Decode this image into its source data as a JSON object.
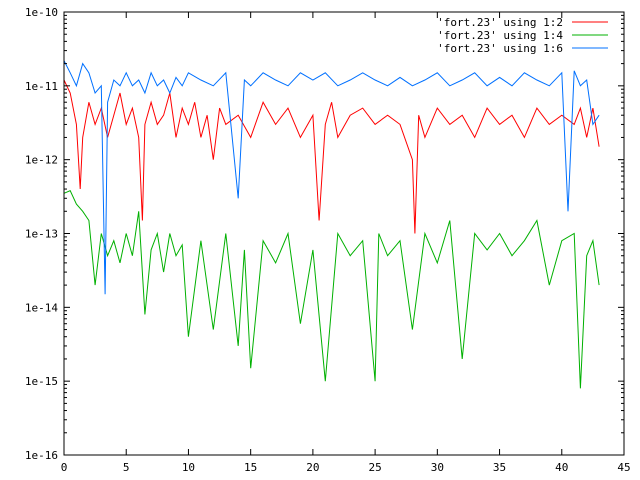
{
  "chart_data": {
    "type": "line",
    "title": "",
    "xlabel": "",
    "ylabel": "",
    "xlim": [
      0,
      45
    ],
    "ylim": [
      1e-16,
      1e-10
    ],
    "yscale": "log",
    "grid": false,
    "legend_placement": "top-right",
    "x_ticks": [
      0,
      5,
      10,
      15,
      20,
      25,
      30,
      35,
      40,
      45
    ],
    "x_tick_labels": [
      "0",
      "5",
      "10",
      "15",
      "20",
      "25",
      "30",
      "35",
      "40",
      "45"
    ],
    "y_ticks": [
      1e-16,
      1e-15,
      1e-14,
      1e-13,
      1e-12,
      1e-11,
      1e-10
    ],
    "y_tick_labels": [
      "1e-16",
      "1e-15",
      "1e-14",
      "1e-13",
      "1e-12",
      "1e-11",
      "1e-10"
    ],
    "series": [
      {
        "name": "'fort.23' using 1:2",
        "color": "#ff0000",
        "x": [
          0,
          0.5,
          1,
          1.3,
          1.5,
          2,
          2.5,
          3,
          3.5,
          4,
          4.5,
          5,
          5.5,
          6,
          6.3,
          6.5,
          7,
          7.5,
          8,
          8.5,
          9,
          9.5,
          10,
          10.5,
          11,
          11.5,
          12,
          12.5,
          13,
          14,
          15,
          16,
          17,
          18,
          19,
          20,
          20.5,
          21,
          21.5,
          22,
          23,
          24,
          25,
          26,
          27,
          28,
          28.2,
          28.5,
          29,
          30,
          31,
          32,
          33,
          34,
          35,
          36,
          37,
          38,
          39,
          40,
          41,
          41.5,
          42,
          42.5,
          43
        ],
        "y": [
          1.2e-11,
          8e-12,
          3e-12,
          4e-13,
          2e-12,
          6e-12,
          3e-12,
          5e-12,
          2e-12,
          4e-12,
          8e-12,
          3e-12,
          5e-12,
          2e-12,
          1.5e-13,
          3e-12,
          6e-12,
          3e-12,
          4e-12,
          8e-12,
          2e-12,
          5e-12,
          3e-12,
          6e-12,
          2e-12,
          4e-12,
          1e-12,
          5e-12,
          3e-12,
          4e-12,
          2e-12,
          6e-12,
          3e-12,
          5e-12,
          2e-12,
          4e-12,
          1.5e-13,
          3e-12,
          6e-12,
          2e-12,
          4e-12,
          5e-12,
          3e-12,
          4e-12,
          3e-12,
          1e-12,
          1e-13,
          4e-12,
          2e-12,
          5e-12,
          3e-12,
          4e-12,
          2e-12,
          5e-12,
          3e-12,
          4e-12,
          2e-12,
          5e-12,
          3e-12,
          4e-12,
          3e-12,
          5e-12,
          2e-12,
          5e-12,
          1.5e-12
        ]
      },
      {
        "name": "'fort.23' using 1:4",
        "color": "#00b000",
        "x": [
          0,
          0.5,
          1,
          1.5,
          2,
          2.5,
          3,
          3.5,
          4,
          4.5,
          5,
          5.5,
          6,
          6.5,
          7,
          7.5,
          8,
          8.5,
          9,
          9.5,
          10,
          11,
          12,
          13,
          14,
          14.5,
          15,
          16,
          17,
          18,
          19,
          20,
          21,
          22,
          23,
          24,
          25,
          25.3,
          26,
          27,
          28,
          29,
          30,
          31,
          32,
          33,
          34,
          35,
          36,
          37,
          38,
          39,
          40,
          41,
          41.5,
          42,
          42.5,
          43
        ],
        "y": [
          3.5e-13,
          3.8e-13,
          2.5e-13,
          2e-13,
          1.5e-13,
          2e-14,
          1e-13,
          5e-14,
          8e-14,
          4e-14,
          1e-13,
          5e-14,
          2e-13,
          8e-15,
          6e-14,
          1e-13,
          3e-14,
          1e-13,
          5e-14,
          7e-14,
          4e-15,
          8e-14,
          5e-15,
          1e-13,
          3e-15,
          6e-14,
          1.5e-15,
          8e-14,
          4e-14,
          1e-13,
          6e-15,
          6e-14,
          1e-15,
          1e-13,
          5e-14,
          8e-14,
          1e-15,
          1e-13,
          5e-14,
          8e-14,
          5e-15,
          1e-13,
          4e-14,
          1.5e-13,
          2e-15,
          1e-13,
          6e-14,
          1e-13,
          5e-14,
          8e-14,
          1.5e-13,
          2e-14,
          8e-14,
          1e-13,
          8e-16,
          5e-14,
          8e-14,
          2e-14
        ]
      },
      {
        "name": "'fort.23' using 1:6",
        "color": "#0070ff",
        "x": [
          0,
          0.5,
          1,
          1.5,
          2,
          2.5,
          3,
          3.3,
          3.5,
          4,
          4.5,
          5,
          5.5,
          6,
          6.5,
          7,
          7.5,
          8,
          8.5,
          9,
          9.5,
          10,
          11,
          12,
          13,
          14,
          14.5,
          15,
          16,
          17,
          18,
          19,
          20,
          21,
          22,
          23,
          24,
          25,
          26,
          27,
          28,
          29,
          30,
          31,
          32,
          33,
          34,
          35,
          36,
          37,
          38,
          39,
          40,
          40.5,
          41,
          41.5,
          42,
          42.5,
          43
        ],
        "y": [
          2.2e-11,
          1.5e-11,
          1e-11,
          2e-11,
          1.5e-11,
          8e-12,
          1e-11,
          1.5e-14,
          6e-12,
          1.2e-11,
          1e-11,
          1.5e-11,
          1e-11,
          1.2e-11,
          8e-12,
          1.5e-11,
          1e-11,
          1.2e-11,
          8e-12,
          1.3e-11,
          1e-11,
          1.5e-11,
          1.2e-11,
          1e-11,
          1.5e-11,
          3e-13,
          1.2e-11,
          1e-11,
          1.5e-11,
          1.2e-11,
          1e-11,
          1.5e-11,
          1.2e-11,
          1.5e-11,
          1e-11,
          1.2e-11,
          1.5e-11,
          1.2e-11,
          1e-11,
          1.3e-11,
          1e-11,
          1.2e-11,
          1.5e-11,
          1e-11,
          1.2e-11,
          1.5e-11,
          1e-11,
          1.3e-11,
          1e-11,
          1.5e-11,
          1.2e-11,
          1e-11,
          1.5e-11,
          2e-13,
          1.6e-11,
          1e-11,
          1.2e-11,
          3e-12,
          4e-12
        ]
      }
    ]
  }
}
